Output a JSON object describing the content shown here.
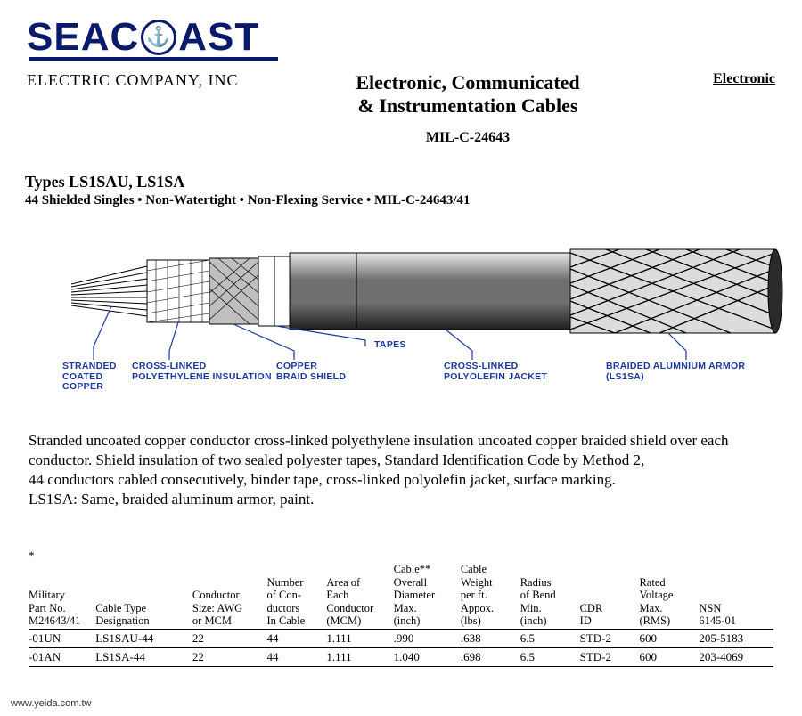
{
  "logo": {
    "text_pre": "SEAC",
    "text_post": "AST"
  },
  "company_sub": "ELECTRIC COMPANY, INC",
  "doc_title_line1": "Electronic, Communicated",
  "doc_title_line2": "& Instrumentation Cables",
  "spec_id": "MIL-C-24643",
  "right_link": "Electronic",
  "types_title": "Types LS1SAU, LS1SA",
  "types_sub": "44 Shielded Singles • Non-Watertight  • Non-Flexing Service • MIL-C-24643/41",
  "diagram": {
    "labels": {
      "stranded": "STRANDED\nCOATED\nCOPPER",
      "xlpe": "CROSS-LINKED\nPOLYETHYLENE INSULATION",
      "braid": "COPPER\nBRAID SHIELD",
      "tapes": "TAPES",
      "jacket": "CROSS-LINKED\nPOLYOLEFIN JACKET",
      "armor": "BRAIDED ALUMNIUM ARMOR (LS1SA)"
    },
    "colors": {
      "line": "#1b3aa0",
      "stroke": "#000000",
      "fill_light": "#ffffff",
      "fill_mid": "#8a8a8a",
      "fill_dark": "#2b2b2b"
    }
  },
  "description_lines": [
    "Stranded uncoated copper conductor cross-linked polyethylene insulation uncoated copper braided shield over each",
    "conductor. Shield insulation of two sealed polyester tapes, Standard Identification Code by Method 2,",
    "44 conductors cabled consecutively, binder tape, cross-linked polyolefin jacket, surface marking.",
    "LS1SA: Same, braided aluminum armor, paint."
  ],
  "table": {
    "star": "*",
    "columns": [
      "Military\nPart No.\nM24643/41",
      "Cable Type\nDesignation",
      "Conductor\nSize: AWG\nor MCM",
      "Number\nof Con-\nductors\nIn Cable",
      "Area of\nEach\nConductor\n(MCM)",
      "Cable**\nOverall\nDiameter\nMax.\n(inch)",
      "Cable\nWeight\nper ft.\nAppox.\n(lbs)",
      "Radius\nof Bend\nMin.\n(inch)",
      "CDR\nID",
      "Rated\nVoltage\nMax.\n(RMS)",
      "NSN\n6145-01"
    ],
    "col_widths": [
      "9%",
      "13%",
      "10%",
      "8%",
      "9%",
      "9%",
      "8%",
      "8%",
      "8%",
      "8%",
      "10%"
    ],
    "rows": [
      [
        "-01UN",
        "LS1SAU-44",
        "22",
        "44",
        "1.111",
        ".990",
        ".638",
        "6.5",
        "STD-2",
        "600",
        "205-5183"
      ],
      [
        "-01AN",
        "LS1SA-44",
        "22",
        "44",
        "1.111",
        "1.040",
        ".698",
        "6.5",
        "STD-2",
        "600",
        "203-4069"
      ]
    ]
  },
  "footer": "www.yeida.com.tw"
}
